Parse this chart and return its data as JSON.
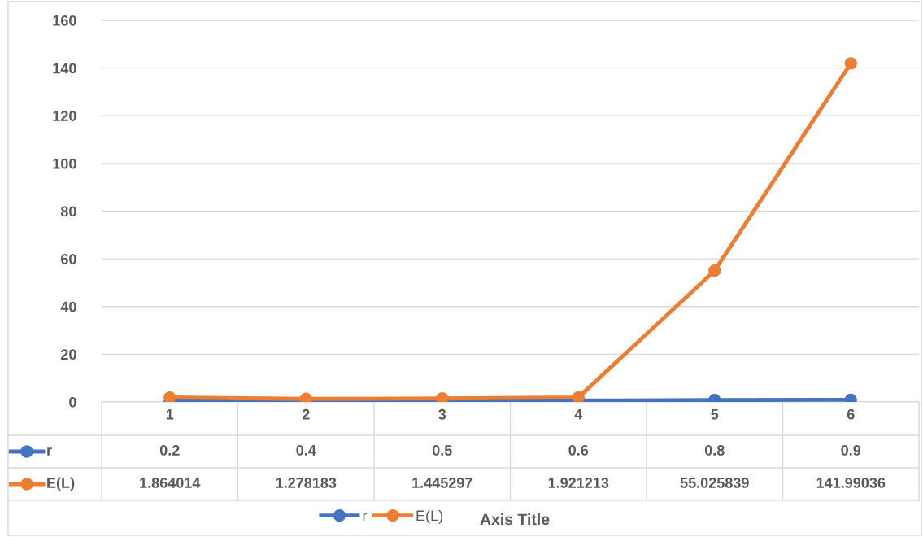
{
  "chart_data": {
    "type": "line",
    "annotations": [
      "Axis Title"
    ],
    "categories": [
      "1",
      "2",
      "3",
      "4",
      "5",
      "6"
    ],
    "series": [
      {
        "name": "r",
        "color": "#4472c4",
        "values": [
          0.2,
          0.4,
          0.5,
          0.6,
          0.8,
          0.9
        ]
      },
      {
        "name": "E(L)",
        "color": "#ed7d31",
        "values": [
          1.864014,
          1.278183,
          1.445297,
          1.921213,
          55.025839,
          141.99036
        ]
      }
    ],
    "ylim": [
      0,
      160
    ],
    "yticks": [
      0,
      20,
      40,
      60,
      80,
      100,
      120,
      140,
      160
    ],
    "grid": "y",
    "legend": "bottom",
    "marker": "circle",
    "line_style": "solid",
    "data_labels": true
  }
}
